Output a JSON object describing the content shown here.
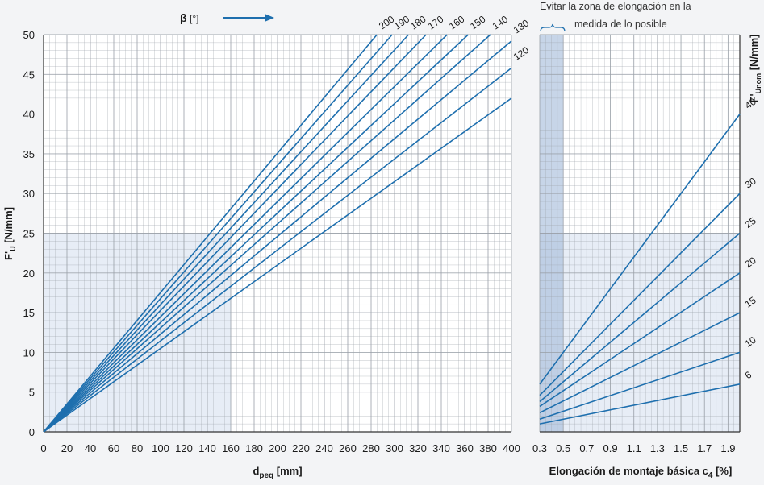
{
  "colors": {
    "background": "#f3f4f6",
    "plot_bg": "#ffffff",
    "grid": "#9aa0a8",
    "line": "#1e6fae",
    "shade": "#c9d6ea",
    "avoid_zone": "#a9bfdc",
    "axis": "#333333"
  },
  "chart_data": [
    {
      "id": "left",
      "type": "line",
      "ylabel": "F'U [N/mm]",
      "xlabel": "dpeq [mm]",
      "xlim": [
        0,
        400
      ],
      "ylim": [
        0,
        50
      ],
      "x_ticks": [
        "0",
        "20",
        "40",
        "60",
        "80",
        "100",
        "120",
        "140",
        "160",
        "180",
        "200",
        "220",
        "240",
        "260",
        "280",
        "300",
        "320",
        "340",
        "360",
        "380",
        "400"
      ],
      "y_ticks": [
        "0",
        "5",
        "10",
        "15",
        "20",
        "25",
        "30",
        "35",
        "40",
        "45",
        "50"
      ],
      "beta_axis": {
        "symbol": "β",
        "unit": "[°]"
      },
      "shaded_region": {
        "x": [
          0,
          160
        ],
        "y": [
          0,
          25
        ]
      },
      "grid": true,
      "series": [
        {
          "name": "200",
          "x": [
            0,
            285
          ],
          "y": [
            0,
            50
          ]
        },
        {
          "name": "190",
          "x": [
            0,
            298
          ],
          "y": [
            0,
            50
          ]
        },
        {
          "name": "180",
          "x": [
            0,
            312
          ],
          "y": [
            0,
            50
          ]
        },
        {
          "name": "170",
          "x": [
            0,
            327
          ],
          "y": [
            0,
            50
          ]
        },
        {
          "name": "160",
          "x": [
            0,
            345
          ],
          "y": [
            0,
            50
          ]
        },
        {
          "name": "150",
          "x": [
            0,
            363
          ],
          "y": [
            0,
            50
          ]
        },
        {
          "name": "140",
          "x": [
            0,
            382
          ],
          "y": [
            0,
            50
          ]
        },
        {
          "name": "130",
          "x": [
            0,
            400
          ],
          "y": [
            0,
            49.2
          ]
        },
        {
          "name": "120",
          "x": [
            0,
            400
          ],
          "y": [
            0,
            45.8
          ]
        },
        {
          "name": "",
          "x": [
            0,
            400
          ],
          "y": [
            0,
            42
          ]
        }
      ]
    },
    {
      "id": "right",
      "type": "line",
      "ylabel": "F'Unom [N/mm]",
      "xlabel": "Elongación de montaje básica c4 [%]",
      "xlim": [
        0.3,
        2.0
      ],
      "x_ticks": [
        "0.3",
        "0.5",
        "0.7",
        "0.9",
        "1.1",
        "1.3",
        "1.5",
        "1.7",
        "1.9"
      ],
      "avoid_zone": {
        "x": [
          0.3,
          0.5
        ],
        "note": "Evitar la zona de elongación en la medida de lo posible"
      },
      "shaded_region": {
        "x": [
          0.3,
          2.0
        ],
        "y": [
          0,
          25
        ]
      },
      "grid": true,
      "series": [
        {
          "name": "40",
          "x": [
            0.3,
            2.0
          ],
          "y": [
            6.0,
            40.0
          ]
        },
        {
          "name": "30",
          "x": [
            0.3,
            2.0
          ],
          "y": [
            4.6,
            30.0
          ]
        },
        {
          "name": "25",
          "x": [
            0.3,
            2.0
          ],
          "y": [
            3.8,
            25.0
          ]
        },
        {
          "name": "20",
          "x": [
            0.3,
            2.0
          ],
          "y": [
            3.2,
            20.0
          ]
        },
        {
          "name": "15",
          "x": [
            0.3,
            2.0
          ],
          "y": [
            2.4,
            15.0
          ]
        },
        {
          "name": "10",
          "x": [
            0.3,
            2.0
          ],
          "y": [
            1.6,
            10.0
          ]
        },
        {
          "name": "6",
          "x": [
            0.3,
            2.0
          ],
          "y": [
            1.0,
            6.0
          ]
        }
      ]
    }
  ],
  "labels": {
    "left_ylabel_main": "F'",
    "left_ylabel_sub": "U",
    "left_ylabel_unit": " [N/mm]",
    "left_xlabel_main": "d",
    "left_xlabel_sub": "peq",
    "left_xlabel_unit": " [mm]",
    "beta_symbol": "β",
    "beta_unit": "[°]",
    "right_ylabel_main": "F'",
    "right_ylabel_sub": "Unom",
    "right_ylabel_unit": " [N/mm]",
    "right_xlabel_main": "Elongación de montaje básica c",
    "right_xlabel_sub": "4",
    "right_xlabel_unit": " [%]",
    "note_line1": "Evitar la zona de elongación en la",
    "note_line2": "medida de lo posible"
  }
}
